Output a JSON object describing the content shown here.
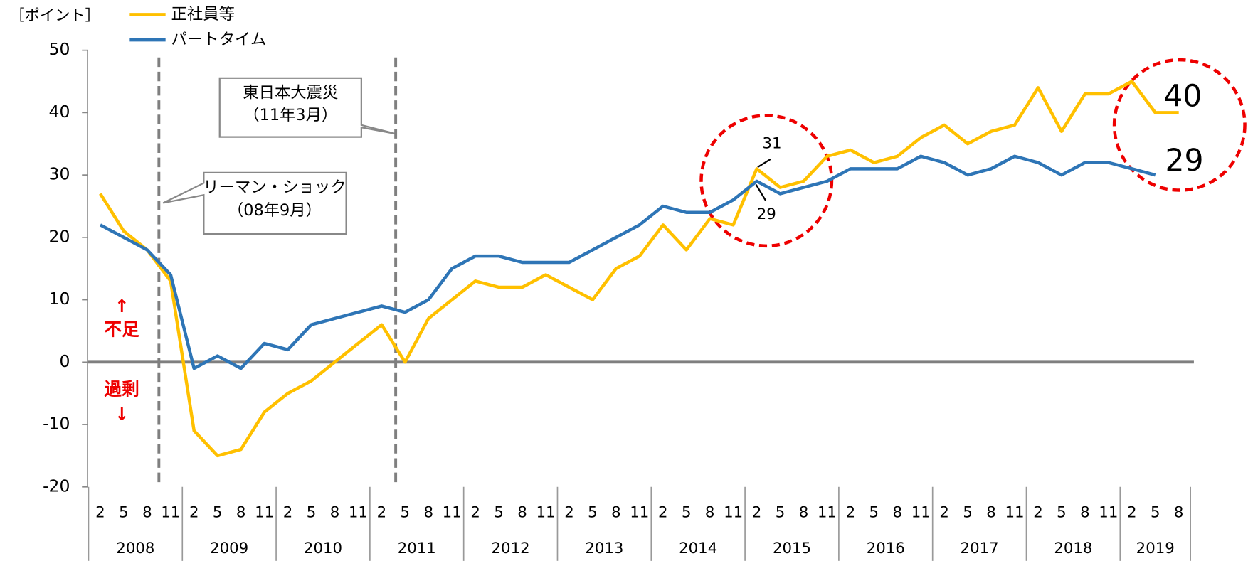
{
  "chart_data": {
    "type": "line",
    "y_unit": "［ポイント］",
    "categories": [
      "2",
      "5",
      "8",
      "11",
      "2",
      "5",
      "8",
      "11",
      "2",
      "5",
      "8",
      "11",
      "2",
      "5",
      "8",
      "11",
      "2",
      "5",
      "8",
      "11",
      "2",
      "5",
      "8",
      "11",
      "2",
      "5",
      "8",
      "11",
      "2",
      "5",
      "8",
      "11",
      "2",
      "5",
      "8",
      "11",
      "2",
      "5",
      "8",
      "11",
      "2",
      "5",
      "8",
      "11",
      "2",
      "5",
      "8"
    ],
    "years": [
      "2008",
      "2009",
      "2010",
      "2011",
      "2012",
      "2013",
      "2014",
      "2015",
      "2016",
      "2017",
      "2018",
      "2019"
    ],
    "series": [
      {
        "name": "正社員等",
        "color": "#FFC000",
        "values": [
          27,
          21,
          18,
          13,
          -11,
          -15,
          -14,
          -8,
          -5,
          -3,
          0,
          3,
          6,
          0,
          7,
          10,
          13,
          12,
          12,
          14,
          12,
          10,
          15,
          17,
          22,
          18,
          23,
          22,
          31,
          28,
          29,
          33,
          34,
          32,
          33,
          36,
          38,
          35,
          37,
          38,
          44,
          37,
          43,
          43,
          45,
          40,
          40
        ]
      },
      {
        "name": "パートタイム",
        "color": "#2E75B6",
        "values": [
          22,
          20,
          18,
          14,
          -1,
          1,
          -1,
          3,
          2,
          6,
          7,
          8,
          9,
          8,
          10,
          15,
          17,
          17,
          16,
          16,
          16,
          18,
          20,
          22,
          25,
          24,
          24,
          26,
          29,
          27,
          28,
          29,
          31,
          31,
          31,
          33,
          32,
          30,
          31,
          33,
          32,
          30,
          32,
          32,
          31,
          30,
          null
        ]
      }
    ],
    "ylim": [
      -20,
      50
    ],
    "yticks": [
      -20,
      -10,
      0,
      10,
      20,
      30,
      40,
      50
    ],
    "annotations": {
      "lehman": [
        "リーマン・ショック",
        "（08年9月）"
      ],
      "quake": [
        "東日本大震災",
        "（11年3月）"
      ],
      "shortage": [
        "↑",
        "不足"
      ],
      "surplus": [
        "過剰",
        "↓"
      ],
      "mid_regular": "31",
      "mid_part": "29",
      "end_regular": "40",
      "end_part": "29"
    }
  }
}
